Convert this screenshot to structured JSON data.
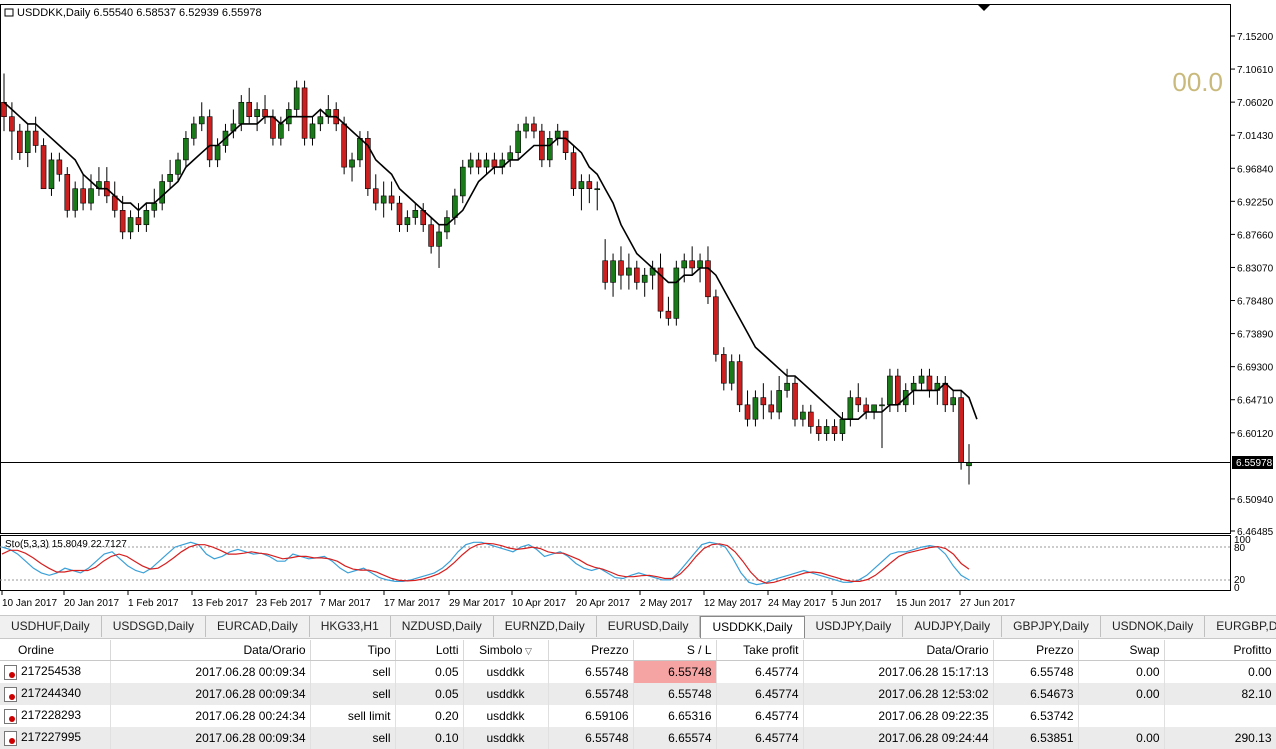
{
  "chart": {
    "header": "USDDKK,Daily  6.55540 6.58537 6.52939 6.55978",
    "counter": "00.0",
    "current_price": "6.55978",
    "price_labels": [
      "7.15200",
      "7.10610",
      "7.06020",
      "7.01430",
      "6.96840",
      "6.92250",
      "6.87660",
      "6.83070",
      "6.78480",
      "6.73890",
      "6.69300",
      "6.64710",
      "6.60120",
      "6.55978",
      "6.50940",
      "6.46485"
    ],
    "date_labels": [
      "10 Jan 2017",
      "20 Jan 2017",
      "1 Feb 2017",
      "13 Feb 2017",
      "23 Feb 2017",
      "7 Mar 2017",
      "17 Mar 2017",
      "29 Mar 2017",
      "10 Apr 2017",
      "20 Apr 2017",
      "2 May 2017",
      "12 May 2017",
      "24 May 2017",
      "5 Jun 2017",
      "15 Jun 2017",
      "27 Jun 2017"
    ],
    "bull_color": "#1a7a1a",
    "bear_color": "#cc1f1f",
    "ma_color": "#000000"
  },
  "oscillator": {
    "label": "Sto(5,3,3) 15.8049 22.7127",
    "levels": [
      "100",
      "80",
      "20",
      "0"
    ],
    "main_color": "#3aa0d8",
    "signal_color": "#d61f1f"
  },
  "tabs": [
    {
      "label": "USDHUF,Daily"
    },
    {
      "label": "USDSGD,Daily"
    },
    {
      "label": "EURCAD,Daily"
    },
    {
      "label": "HKG33,H1"
    },
    {
      "label": "NZDUSD,Daily"
    },
    {
      "label": "EURNZD,Daily"
    },
    {
      "label": "EURUSD,Daily"
    },
    {
      "label": "USDDKK,Daily",
      "active": true
    },
    {
      "label": "USDJPY,Daily"
    },
    {
      "label": "AUDJPY,Daily"
    },
    {
      "label": "GBPJPY,Daily"
    },
    {
      "label": "USDNOK,Daily"
    },
    {
      "label": "EURGBP,Daily"
    }
  ],
  "orders": {
    "columns": [
      "Ordine",
      "Data/Orario",
      "Tipo",
      "Lotti",
      "Simbolo",
      "Prezzo",
      "S / L",
      "Take profit",
      "Data/Orario",
      "Prezzo",
      "Swap",
      "Profitto"
    ],
    "rows": [
      {
        "ordine": "217254538",
        "data": "2017.06.28 00:09:34",
        "tipo": "sell",
        "lotti": "0.05",
        "simbolo": "usddkk",
        "prezzo": "6.55748",
        "sl": "6.55748",
        "tp": "6.45774",
        "data2": "2017.06.28 15:17:13",
        "prezzo2": "6.55748",
        "swap": "0.00",
        "profitto": "0.00",
        "sl_hit": true
      },
      {
        "ordine": "217244340",
        "data": "2017.06.28 00:09:34",
        "tipo": "sell",
        "lotti": "0.05",
        "simbolo": "usddkk",
        "prezzo": "6.55748",
        "sl": "6.55748",
        "tp": "6.45774",
        "data2": "2017.06.28 12:53:02",
        "prezzo2": "6.54673",
        "swap": "0.00",
        "profitto": "82.10",
        "sl_hit": false
      },
      {
        "ordine": "217228293",
        "data": "2017.06.28 00:24:34",
        "tipo": "sell limit",
        "lotti": "0.20",
        "simbolo": "usddkk",
        "prezzo": "6.59106",
        "sl": "6.65316",
        "tp": "6.45774",
        "data2": "2017.06.28 09:22:35",
        "prezzo2": "6.53742",
        "swap": "",
        "profitto": "",
        "sl_hit": false
      },
      {
        "ordine": "217227995",
        "data": "2017.06.28 00:09:34",
        "tipo": "sell",
        "lotti": "0.10",
        "simbolo": "usddkk",
        "prezzo": "6.55748",
        "sl": "6.65574",
        "tp": "6.45774",
        "data2": "2017.06.28 09:24:44",
        "prezzo2": "6.53851",
        "swap": "0.00",
        "profitto": "290.13",
        "sl_hit": false
      }
    ]
  },
  "chart_data": {
    "type": "candlestick",
    "title": "USDDKK,Daily",
    "ylim": [
      6.46485,
      7.16
    ],
    "ohlc": [
      [
        7.06,
        7.1,
        7.02,
        7.04
      ],
      [
        7.04,
        7.06,
        6.98,
        7.02
      ],
      [
        7.02,
        7.03,
        6.98,
        6.99
      ],
      [
        6.99,
        7.03,
        6.97,
        7.02
      ],
      [
        7.02,
        7.04,
        6.99,
        7.0
      ],
      [
        7.0,
        7.01,
        6.94,
        6.94
      ],
      [
        6.94,
        6.99,
        6.93,
        6.98
      ],
      [
        6.98,
        6.99,
        6.95,
        6.96
      ],
      [
        6.96,
        6.97,
        6.9,
        6.91
      ],
      [
        6.91,
        6.95,
        6.9,
        6.94
      ],
      [
        6.94,
        6.96,
        6.91,
        6.92
      ],
      [
        6.92,
        6.96,
        6.91,
        6.94
      ],
      [
        6.94,
        6.97,
        6.93,
        6.95
      ],
      [
        6.95,
        6.97,
        6.92,
        6.93
      ],
      [
        6.93,
        6.95,
        6.9,
        6.91
      ],
      [
        6.91,
        6.93,
        6.87,
        6.88
      ],
      [
        6.88,
        6.91,
        6.87,
        6.9
      ],
      [
        6.9,
        6.92,
        6.88,
        6.89
      ],
      [
        6.89,
        6.92,
        6.88,
        6.91
      ],
      [
        6.91,
        6.94,
        6.9,
        6.92
      ],
      [
        6.92,
        6.96,
        6.91,
        6.95
      ],
      [
        6.95,
        6.98,
        6.94,
        6.96
      ],
      [
        6.96,
        6.99,
        6.95,
        6.98
      ],
      [
        6.98,
        7.02,
        6.97,
        7.01
      ],
      [
        7.01,
        7.04,
        7.0,
        7.03
      ],
      [
        7.03,
        7.06,
        7.02,
        7.04
      ],
      [
        7.04,
        7.05,
        6.97,
        6.98
      ],
      [
        6.98,
        7.01,
        6.97,
        7.0
      ],
      [
        7.0,
        7.03,
        6.99,
        7.02
      ],
      [
        7.02,
        7.05,
        7.01,
        7.03
      ],
      [
        7.03,
        7.07,
        7.02,
        7.06
      ],
      [
        7.06,
        7.08,
        7.03,
        7.04
      ],
      [
        7.04,
        7.06,
        7.02,
        7.05
      ],
      [
        7.05,
        7.07,
        7.03,
        7.04
      ],
      [
        7.04,
        7.05,
        7.0,
        7.01
      ],
      [
        7.01,
        7.04,
        7.0,
        7.03
      ],
      [
        7.03,
        7.06,
        7.02,
        7.05
      ],
      [
        7.05,
        7.09,
        7.04,
        7.08
      ],
      [
        7.08,
        7.09,
        7.0,
        7.01
      ],
      [
        7.01,
        7.04,
        7.0,
        7.03
      ],
      [
        7.03,
        7.05,
        7.02,
        7.04
      ],
      [
        7.04,
        7.07,
        7.03,
        7.05
      ],
      [
        7.05,
        7.06,
        7.02,
        7.03
      ],
      [
        7.03,
        7.04,
        6.96,
        6.97
      ],
      [
        6.97,
        6.99,
        6.95,
        6.98
      ],
      [
        6.98,
        7.02,
        6.97,
        7.01
      ],
      [
        7.01,
        7.02,
        6.93,
        6.94
      ],
      [
        6.94,
        6.96,
        6.91,
        6.92
      ],
      [
        6.92,
        6.95,
        6.9,
        6.93
      ],
      [
        6.93,
        6.95,
        6.91,
        6.92
      ],
      [
        6.92,
        6.93,
        6.88,
        6.89
      ],
      [
        6.89,
        6.91,
        6.88,
        6.9
      ],
      [
        6.9,
        6.92,
        6.89,
        6.91
      ],
      [
        6.91,
        6.92,
        6.88,
        6.89
      ],
      [
        6.89,
        6.9,
        6.85,
        6.86
      ],
      [
        6.86,
        6.89,
        6.83,
        6.88
      ],
      [
        6.88,
        6.91,
        6.87,
        6.9
      ],
      [
        6.9,
        6.94,
        6.89,
        6.93
      ],
      [
        6.93,
        6.98,
        6.92,
        6.97
      ],
      [
        6.97,
        6.99,
        6.96,
        6.98
      ],
      [
        6.98,
        6.99,
        6.96,
        6.97
      ],
      [
        6.97,
        6.99,
        6.96,
        6.98
      ],
      [
        6.98,
        6.99,
        6.96,
        6.97
      ],
      [
        6.97,
        6.99,
        6.96,
        6.98
      ],
      [
        6.98,
        7.0,
        6.97,
        6.99
      ],
      [
        6.99,
        7.03,
        6.98,
        7.02
      ],
      [
        7.02,
        7.04,
        7.01,
        7.03
      ],
      [
        7.03,
        7.04,
        7.01,
        7.02
      ],
      [
        7.02,
        7.03,
        6.97,
        6.98
      ],
      [
        6.98,
        7.02,
        6.97,
        7.01
      ],
      [
        7.01,
        7.03,
        7.0,
        7.02
      ],
      [
        7.02,
        7.02,
        6.98,
        6.99
      ],
      [
        6.99,
        7.0,
        6.93,
        6.94
      ],
      [
        6.94,
        6.96,
        6.91,
        6.95
      ],
      [
        6.95,
        6.96,
        6.92,
        6.94
      ],
      [
        6.94,
        6.95,
        6.91,
        6.94
      ],
      [
        6.84,
        6.87,
        6.8,
        6.81
      ],
      [
        6.81,
        6.85,
        6.79,
        6.84
      ],
      [
        6.84,
        6.86,
        6.8,
        6.82
      ],
      [
        6.82,
        6.85,
        6.8,
        6.83
      ],
      [
        6.83,
        6.84,
        6.8,
        6.81
      ],
      [
        6.81,
        6.83,
        6.79,
        6.82
      ],
      [
        6.82,
        6.84,
        6.8,
        6.83
      ],
      [
        6.83,
        6.85,
        6.76,
        6.77
      ],
      [
        6.77,
        6.79,
        6.75,
        6.76
      ],
      [
        6.76,
        6.84,
        6.75,
        6.83
      ],
      [
        6.83,
        6.85,
        6.81,
        6.84
      ],
      [
        6.84,
        6.86,
        6.82,
        6.83
      ],
      [
        6.83,
        6.85,
        6.81,
        6.84
      ],
      [
        6.84,
        6.86,
        6.78,
        6.79
      ],
      [
        6.79,
        6.8,
        6.7,
        6.71
      ],
      [
        6.71,
        6.72,
        6.66,
        6.67
      ],
      [
        6.67,
        6.71,
        6.66,
        6.7
      ],
      [
        6.7,
        6.71,
        6.63,
        6.64
      ],
      [
        6.64,
        6.66,
        6.61,
        6.62
      ],
      [
        6.62,
        6.66,
        6.61,
        6.65
      ],
      [
        6.65,
        6.67,
        6.62,
        6.64
      ],
      [
        6.64,
        6.66,
        6.62,
        6.63
      ],
      [
        6.63,
        6.68,
        6.62,
        6.66
      ],
      [
        6.66,
        6.69,
        6.65,
        6.67
      ],
      [
        6.67,
        6.68,
        6.61,
        6.62
      ],
      [
        6.62,
        6.64,
        6.61,
        6.63
      ],
      [
        6.63,
        6.64,
        6.6,
        6.61
      ],
      [
        6.61,
        6.62,
        6.59,
        6.6
      ],
      [
        6.6,
        6.62,
        6.59,
        6.61
      ],
      [
        6.61,
        6.62,
        6.59,
        6.6
      ],
      [
        6.6,
        6.63,
        6.59,
        6.62
      ],
      [
        6.62,
        6.66,
        6.61,
        6.65
      ],
      [
        6.65,
        6.67,
        6.63,
        6.64
      ],
      [
        6.64,
        6.65,
        6.62,
        6.63
      ],
      [
        6.63,
        6.64,
        6.62,
        6.64
      ],
      [
        6.64,
        6.65,
        6.58,
        6.64
      ],
      [
        6.64,
        6.69,
        6.63,
        6.68
      ],
      [
        6.68,
        6.69,
        6.63,
        6.64
      ],
      [
        6.64,
        6.67,
        6.63,
        6.66
      ],
      [
        6.66,
        6.68,
        6.64,
        6.67
      ],
      [
        6.67,
        6.69,
        6.66,
        6.68
      ],
      [
        6.68,
        6.69,
        6.65,
        6.66
      ],
      [
        6.66,
        6.68,
        6.64,
        6.67
      ],
      [
        6.67,
        6.68,
        6.63,
        6.64
      ],
      [
        6.64,
        6.66,
        6.63,
        6.65
      ],
      [
        6.65,
        6.66,
        6.55,
        6.56
      ],
      [
        6.5554,
        6.58537,
        6.52939,
        6.55978
      ]
    ],
    "ma": [
      7.06,
      7.05,
      7.04,
      7.03,
      7.03,
      7.02,
      7.01,
      7.0,
      6.99,
      6.98,
      6.96,
      6.95,
      6.94,
      6.94,
      6.93,
      6.92,
      6.92,
      6.91,
      6.92,
      6.92,
      6.93,
      6.94,
      6.95,
      6.97,
      6.98,
      6.99,
      7.0,
      7.0,
      7.01,
      7.02,
      7.03,
      7.03,
      7.03,
      7.04,
      7.04,
      7.03,
      7.04,
      7.04,
      7.04,
      7.04,
      7.05,
      7.04,
      7.04,
      7.03,
      7.02,
      7.01,
      7.0,
      6.98,
      6.97,
      6.96,
      6.94,
      6.93,
      6.92,
      6.91,
      6.9,
      6.89,
      6.89,
      6.9,
      6.91,
      6.93,
      6.95,
      6.96,
      6.97,
      6.97,
      6.98,
      6.98,
      6.99,
      7.0,
      7.0,
      7.0,
      7.01,
      7.01,
      7.0,
      6.99,
      6.97,
      6.96,
      6.94,
      6.92,
      6.89,
      6.87,
      6.85,
      6.84,
      6.83,
      6.82,
      6.81,
      6.81,
      6.82,
      6.82,
      6.83,
      6.83,
      6.82,
      6.8,
      6.78,
      6.76,
      6.74,
      6.72,
      6.71,
      6.7,
      6.69,
      6.68,
      6.68,
      6.67,
      6.66,
      6.65,
      6.64,
      6.63,
      6.62,
      6.62,
      6.62,
      6.63,
      6.63,
      6.63,
      6.64,
      6.64,
      6.65,
      6.66,
      6.66,
      6.66,
      6.66,
      6.67,
      6.66,
      6.66,
      6.65,
      6.62
    ],
    "stoch_main": [
      85,
      80,
      70,
      55,
      40,
      30,
      25,
      30,
      40,
      35,
      30,
      40,
      55,
      70,
      75,
      60,
      45,
      35,
      30,
      40,
      55,
      70,
      85,
      90,
      95,
      90,
      70,
      60,
      65,
      75,
      80,
      75,
      70,
      72,
      65,
      55,
      55,
      70,
      65,
      60,
      62,
      65,
      55,
      40,
      30,
      35,
      40,
      30,
      20,
      15,
      12,
      12,
      15,
      20,
      25,
      30,
      40,
      55,
      75,
      90,
      95,
      95,
      90,
      85,
      80,
      75,
      85,
      90,
      80,
      65,
      70,
      75,
      65,
      50,
      40,
      35,
      40,
      30,
      20,
      18,
      25,
      30,
      25,
      20,
      15,
      15,
      30,
      50,
      70,
      90,
      95,
      92,
      85,
      60,
      30,
      10,
      5,
      8,
      15,
      20,
      25,
      30,
      35,
      30,
      25,
      20,
      15,
      10,
      10,
      15,
      25,
      40,
      55,
      70,
      75,
      75,
      80,
      85,
      88,
      85,
      70,
      45,
      25,
      15
    ],
    "stoch_signal": [
      70,
      78,
      78,
      72,
      62,
      50,
      40,
      32,
      32,
      35,
      35,
      35,
      42,
      55,
      65,
      70,
      65,
      55,
      45,
      38,
      40,
      50,
      62,
      75,
      85,
      90,
      90,
      85,
      78,
      70,
      70,
      72,
      75,
      72,
      70,
      65,
      60,
      62,
      65,
      65,
      62,
      62,
      60,
      55,
      45,
      38,
      36,
      36,
      32,
      25,
      18,
      14,
      13,
      14,
      17,
      22,
      28,
      38,
      52,
      68,
      82,
      90,
      93,
      92,
      88,
      83,
      80,
      82,
      85,
      82,
      75,
      72,
      72,
      65,
      58,
      48,
      42,
      38,
      32,
      25,
      22,
      22,
      24,
      25,
      22,
      18,
      18,
      28,
      45,
      65,
      82,
      90,
      92,
      88,
      75,
      55,
      32,
      15,
      8,
      10,
      15,
      20,
      25,
      30,
      32,
      30,
      25,
      20,
      15,
      12,
      12,
      16,
      25,
      38,
      52,
      65,
      72,
      76,
      80,
      84,
      86,
      82,
      70,
      50,
      38
    ]
  }
}
